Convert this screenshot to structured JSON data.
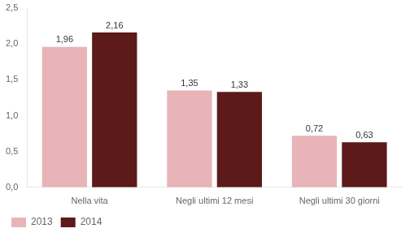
{
  "chart_data": {
    "type": "bar",
    "categories": [
      "Nella vita",
      "Negli ultimi 12 mesi",
      "Negli ultimi 30 giorni"
    ],
    "series": [
      {
        "name": "2013",
        "color": "#e8b4b8",
        "values": [
          1.96,
          1.35,
          0.72
        ],
        "value_labels": [
          "1,96",
          "1,35",
          "0,72"
        ]
      },
      {
        "name": "2014",
        "color": "#5c1a1a",
        "values": [
          2.16,
          1.33,
          0.63
        ],
        "value_labels": [
          "2,16",
          "1,33",
          "0,63"
        ]
      }
    ],
    "ylim": [
      0,
      2.5
    ],
    "yticks": [
      {
        "value": 0.0,
        "label": "0,0"
      },
      {
        "value": 0.5,
        "label": "0,5"
      },
      {
        "value": 1.0,
        "label": "1,0"
      },
      {
        "value": 1.5,
        "label": "1,5"
      },
      {
        "value": 2.0,
        "label": "2,0"
      },
      {
        "value": 2.5,
        "label": "2,5"
      }
    ],
    "grid": false,
    "legend": "bottom",
    "data_labels": true
  }
}
